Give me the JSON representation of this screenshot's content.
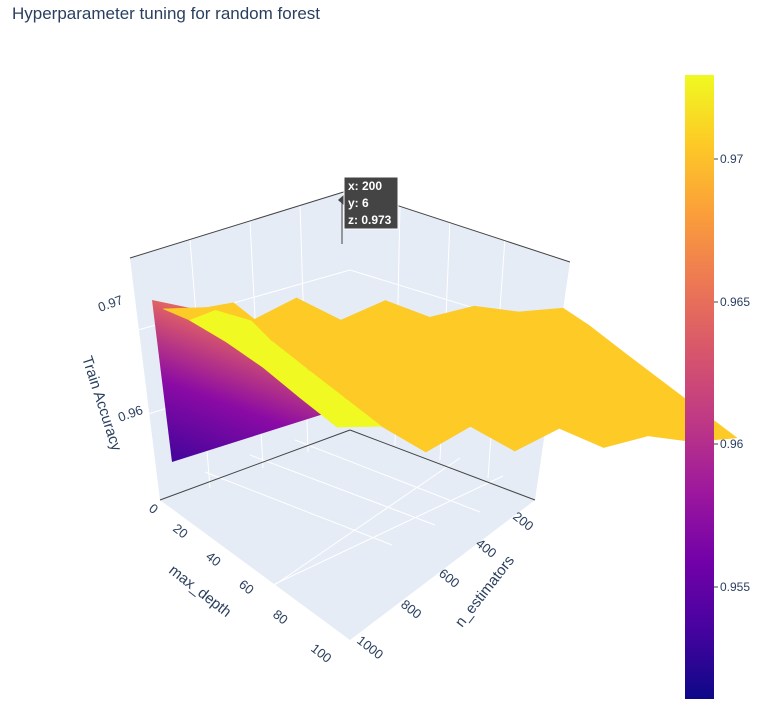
{
  "chart_data": {
    "type": "surface",
    "title": "Hyperparameter tuning for random forest",
    "xlabel": "n_estimators",
    "ylabel": "max_depth",
    "zlabel": "Train Accuracy",
    "x_ticks": [
      200,
      400,
      600,
      800,
      1000
    ],
    "y_ticks": [
      0,
      20,
      40,
      60,
      80,
      100
    ],
    "z_ticks": [
      "0.96",
      "0.97"
    ],
    "colorbar": {
      "ticks": [
        "0.97",
        "0.965",
        "0.96",
        "0.955"
      ],
      "range": [
        0.9505,
        0.9733
      ],
      "colorscale": "plasma"
    },
    "hover": {
      "x_label": "x: 200",
      "y_label": "y: 6",
      "z_label": "z: 0.973"
    },
    "surface_rows": [
      {
        "x": 100,
        "z": [
          0.9505,
          0.9688,
          0.9702,
          0.9712,
          0.9716,
          0.9712,
          0.971
        ]
      },
      {
        "x": 200,
        "z": [
          0.9505,
          0.969,
          0.973,
          0.9715,
          0.9713,
          0.9712,
          0.9711
        ]
      },
      {
        "x": 300,
        "z": [
          0.9505,
          0.9668,
          0.9672,
          0.967,
          0.9669,
          0.9668,
          0.9668
        ]
      },
      {
        "x": 400,
        "z": [
          0.9505,
          0.9705,
          0.9712,
          0.971,
          0.971,
          0.971,
          0.971
        ]
      },
      {
        "x": 500,
        "z": [
          0.9505,
          0.9668,
          0.967,
          0.9669,
          0.9669,
          0.9669,
          0.9669
        ]
      },
      {
        "x": 600,
        "z": [
          0.9505,
          0.97,
          0.9707,
          0.9706,
          0.9706,
          0.9706,
          0.9706
        ]
      },
      {
        "x": 700,
        "z": [
          0.9505,
          0.9672,
          0.9675,
          0.9674,
          0.9674,
          0.9674,
          0.9674
        ]
      },
      {
        "x": 800,
        "z": [
          0.9505,
          0.969,
          0.9694,
          0.9693,
          0.9693,
          0.9693,
          0.9693
        ]
      },
      {
        "x": 900,
        "z": [
          0.9505,
          0.968,
          0.9684,
          0.9683,
          0.9683,
          0.9683,
          0.9683
        ]
      },
      {
        "x": 1000,
        "z": [
          0.9505,
          0.9686,
          0.969,
          0.9689,
          0.9689,
          0.9689,
          0.9689
        ]
      }
    ],
    "surface_y": [
      0,
      6,
      20,
      40,
      60,
      80,
      100
    ]
  }
}
